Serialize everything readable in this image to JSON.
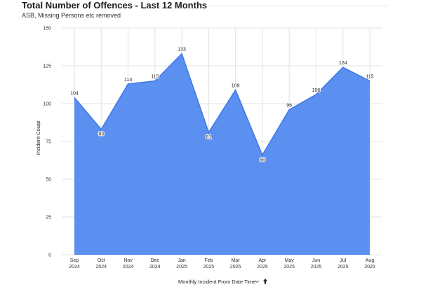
{
  "header": {
    "title": "Total Number of Offences - Last 12 Months",
    "subtitle": "ASB, Missing Persons etc removed"
  },
  "colors": {
    "area_fill": "#5b8ff0",
    "area_line": "#3f79e8",
    "grid": "#e3e3e3"
  },
  "icons": {
    "x_sort": "up-arrow-icon",
    "x_menu": "chevron-down-icon",
    "y_menu": "chevron-down-icon"
  },
  "chart_data": {
    "type": "area",
    "categories": [
      [
        "Sep",
        "2024"
      ],
      [
        "Oct",
        "2024"
      ],
      [
        "Nov",
        "2024"
      ],
      [
        "Dec",
        "2024"
      ],
      [
        "Jan",
        "2025"
      ],
      [
        "Feb",
        "2025"
      ],
      [
        "Mar",
        "2025"
      ],
      [
        "Apr",
        "2025"
      ],
      [
        "May",
        "2025"
      ],
      [
        "Jun",
        "2025"
      ],
      [
        "Jul",
        "2025"
      ],
      [
        "Aug",
        "2025"
      ]
    ],
    "values": [
      104,
      83,
      113,
      115,
      133,
      81,
      109,
      66,
      96,
      106,
      124,
      115
    ],
    "xlabel": "Monthly Incident From Date Time",
    "ylabel": "Incident Count",
    "ylim": [
      0,
      150
    ],
    "yticks": [
      0,
      25,
      50,
      75,
      100,
      125,
      150
    ],
    "grid": true,
    "data_labels": true
  }
}
